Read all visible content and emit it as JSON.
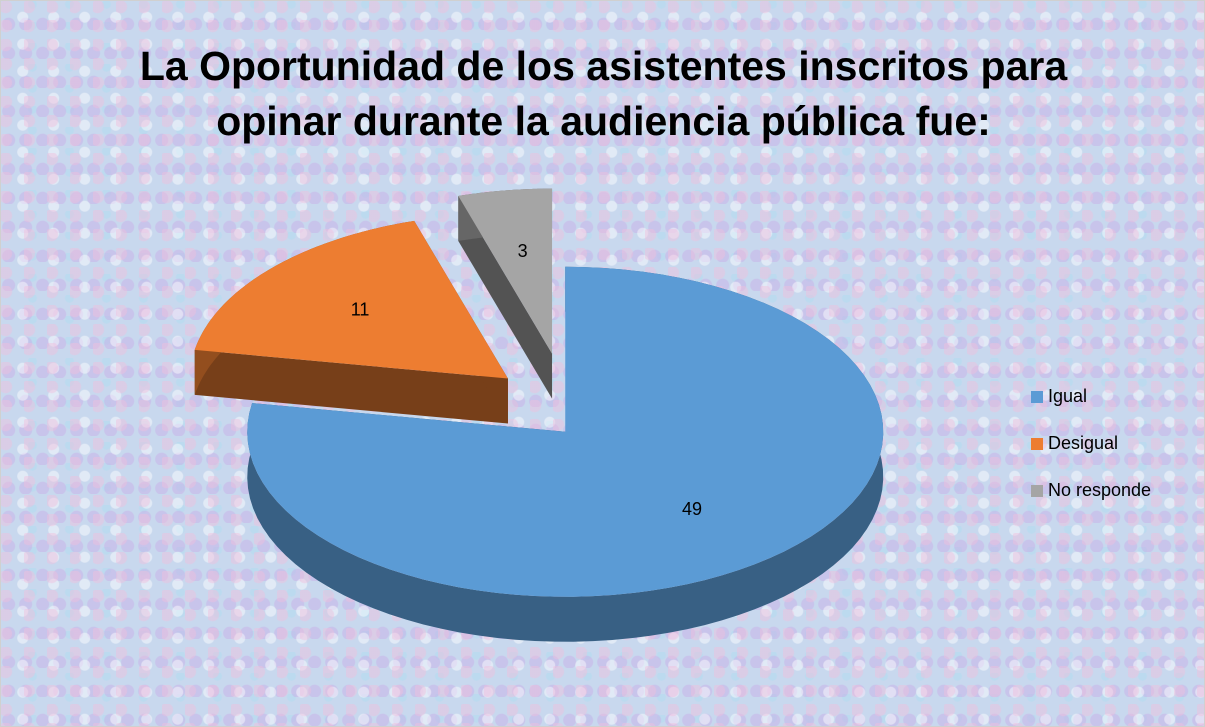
{
  "chart_data": {
    "type": "pie",
    "title": "La Oportunidad de los asistentes inscritos para opinar durante la audiencia pública fue:",
    "categories": [
      "Igual",
      "Desigual",
      "No responde"
    ],
    "values": [
      49,
      11,
      3
    ],
    "colors": [
      "#5b9bd5",
      "#ed7d31",
      "#a5a5a5"
    ],
    "legend": "right"
  }
}
